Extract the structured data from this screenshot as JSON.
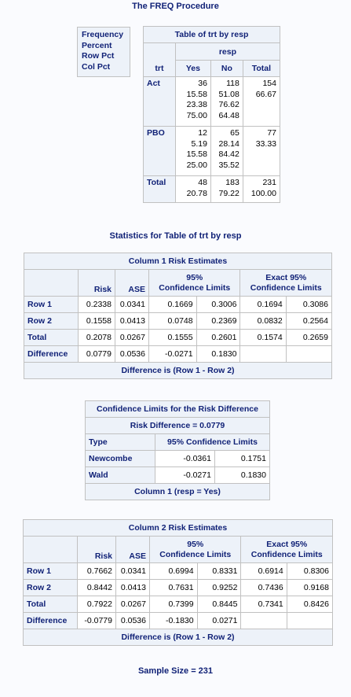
{
  "page_title": "The FREQ Procedure",
  "legend": [
    "Frequency",
    "Percent",
    "Row Pct",
    "Col Pct"
  ],
  "crosstab": {
    "title": "Table of trt by resp",
    "col_var": "resp",
    "row_var": "trt",
    "columns": [
      "Yes",
      "No",
      "Total"
    ],
    "rows": [
      {
        "label": "Act",
        "yes": "36\n15.58\n23.38\n75.00",
        "no": "118\n51.08\n76.62\n64.48",
        "total": "154\n66.67"
      },
      {
        "label": "PBO",
        "yes": "12\n5.19\n15.58\n25.00",
        "no": "65\n28.14\n84.42\n35.52",
        "total": "77\n33.33"
      },
      {
        "label": "Total",
        "yes": "48\n20.78",
        "no": "183\n79.22",
        "total": "231\n100.00"
      }
    ]
  },
  "stats_title": "Statistics for Table of trt by resp",
  "risk_header": {
    "risk": "Risk",
    "ase": "ASE",
    "cl": "95%\nConfidence Limits",
    "exact": "Exact 95%\nConfidence Limits"
  },
  "risk1": {
    "title": "Column 1 Risk Estimates",
    "rows": [
      {
        "label": "Row 1",
        "risk": "0.2338",
        "ase": "0.0341",
        "lcl": "0.1669",
        "ucl": "0.3006",
        "elcl": "0.1694",
        "eucl": "0.3086"
      },
      {
        "label": "Row 2",
        "risk": "0.1558",
        "ase": "0.0413",
        "lcl": "0.0748",
        "ucl": "0.2369",
        "elcl": "0.0832",
        "eucl": "0.2564"
      },
      {
        "label": "Total",
        "risk": "0.2078",
        "ase": "0.0267",
        "lcl": "0.1555",
        "ucl": "0.2601",
        "elcl": "0.1574",
        "eucl": "0.2659"
      },
      {
        "label": "Difference",
        "risk": "0.0779",
        "ase": "0.0536",
        "lcl": "-0.0271",
        "ucl": "0.1830",
        "elcl": "",
        "eucl": ""
      }
    ],
    "footer": "Difference is (Row 1 - Row 2)"
  },
  "cl_diff": {
    "title": "Confidence Limits for the Risk Difference",
    "subtitle": "Risk Difference = 0.0779",
    "col_type": "Type",
    "col_cl": "95% Confidence Limits",
    "rows": [
      {
        "label": "Newcombe",
        "lcl": "-0.0361",
        "ucl": "0.1751"
      },
      {
        "label": "Wald",
        "lcl": "-0.0271",
        "ucl": "0.1830"
      }
    ],
    "footer": "Column 1 (resp = Yes)"
  },
  "risk2": {
    "title": "Column 2 Risk Estimates",
    "rows": [
      {
        "label": "Row 1",
        "risk": "0.7662",
        "ase": "0.0341",
        "lcl": "0.6994",
        "ucl": "0.8331",
        "elcl": "0.6914",
        "eucl": "0.8306"
      },
      {
        "label": "Row 2",
        "risk": "0.8442",
        "ase": "0.0413",
        "lcl": "0.7631",
        "ucl": "0.9252",
        "elcl": "0.7436",
        "eucl": "0.9168"
      },
      {
        "label": "Total",
        "risk": "0.7922",
        "ase": "0.0267",
        "lcl": "0.7399",
        "ucl": "0.8445",
        "elcl": "0.7341",
        "eucl": "0.8426"
      },
      {
        "label": "Difference",
        "risk": "-0.0779",
        "ase": "0.0536",
        "lcl": "-0.1830",
        "ucl": "0.0271",
        "elcl": "",
        "eucl": ""
      }
    ],
    "footer": "Difference is (Row 1 - Row 2)"
  },
  "sample_size": "Sample Size = 231"
}
